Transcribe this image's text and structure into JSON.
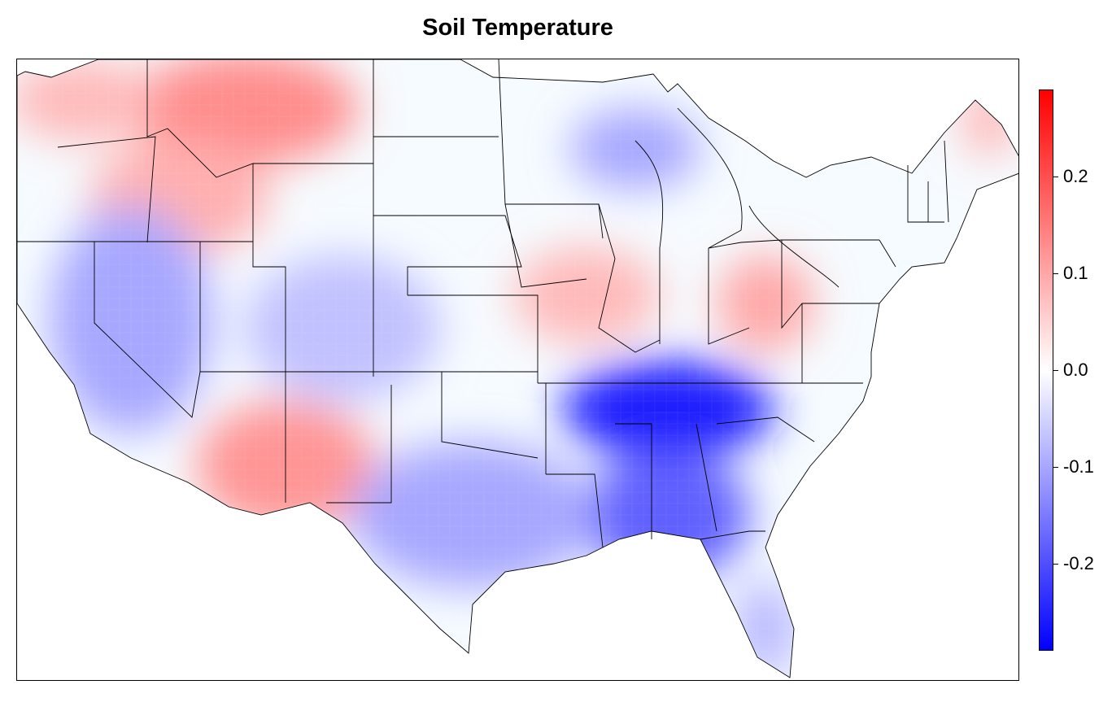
{
  "title": "Soil Temperature",
  "legend": {
    "ticks": [
      "0.2",
      "0.1",
      "0.0",
      "-0.1",
      "-0.2"
    ],
    "tick_values": [
      0.2,
      0.1,
      0.0,
      -0.1,
      -0.2
    ],
    "range": [
      -0.29,
      0.29
    ],
    "colors": {
      "low": "#0000ff",
      "mid": "#ffffff",
      "high": "#ff0000"
    }
  },
  "map": {
    "region": "conterminous United States",
    "lon_range": [
      -125,
      -66.5
    ],
    "lat_range": [
      24.5,
      49.5
    ],
    "anomaly_regions": [
      {
        "name": "Montana",
        "value": 0.13
      },
      {
        "name": "Idaho-Oregon",
        "value": 0.09
      },
      {
        "name": "Washington",
        "value": 0.08
      },
      {
        "name": "Nevada-California",
        "value": -0.1
      },
      {
        "name": "Colorado-Utah",
        "value": -0.07
      },
      {
        "name": "New Mexico-Arizona",
        "value": 0.12
      },
      {
        "name": "Iowa-Illinois",
        "value": 0.08
      },
      {
        "name": "Ohio",
        "value": 0.1
      },
      {
        "name": "Wisconsin",
        "value": -0.1
      },
      {
        "name": "Tennessee",
        "value": -0.26
      },
      {
        "name": "Alabama-Mississippi",
        "value": -0.18
      },
      {
        "name": "Texas",
        "value": -0.1
      },
      {
        "name": "Florida",
        "value": -0.08
      },
      {
        "name": "Maine",
        "value": 0.08
      }
    ]
  }
}
